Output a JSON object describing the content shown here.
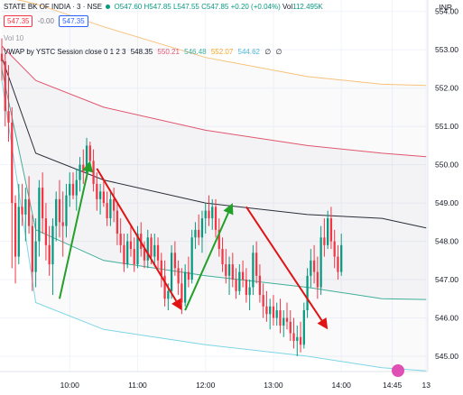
{
  "header": {
    "symbol": "STATE BK OF INDIA · 3 · NSE",
    "o": "O547.60",
    "h": "H547.85",
    "l": "L547.55",
    "c": "C547.85",
    "chg": "+0.20 (+0.04%)",
    "vol_label": "Vol",
    "vol_value": "112.495K",
    "sell_price": "547.35",
    "spread": "-0.00",
    "buy_price": "547.35",
    "vol_indicator": "Vol 10",
    "vwap_label": "VWAP by YSTC Session close 0 1 2 3",
    "vwap_values": [
      "548.35",
      "550.21",
      "546.48",
      "552.07",
      "544.62",
      "∅",
      "∅"
    ],
    "currency": "INR"
  },
  "colors": {
    "up": "#089981",
    "down": "#f23645",
    "vwap": "#2a2e39",
    "band1_up": "#e0566f",
    "band1_dn": "#3fae9a",
    "band2_up": "#f7c27a",
    "band2_dn": "#7dd6e5",
    "arrow_up": "#22a028",
    "arrow_down": "#e01414"
  },
  "chart_data": {
    "type": "candlestick",
    "ylim": [
      544.6,
      554.3
    ],
    "y_ticks": [
      545.0,
      546.0,
      547.0,
      548.0,
      549.0,
      550.0,
      551.0,
      552.0,
      553.0,
      554.0
    ],
    "x_ticks": [
      {
        "label": "10:00",
        "t": 20
      },
      {
        "label": "11:00",
        "t": 40
      },
      {
        "label": "12:00",
        "t": 60
      },
      {
        "label": "13:00",
        "t": 80
      },
      {
        "label": "14:00",
        "t": 100
      },
      {
        "label": "14:45",
        "t": 115
      },
      {
        "label": "13",
        "t": 125
      }
    ],
    "xlim": [
      0,
      126
    ],
    "candles": [
      [
        0,
        552.9,
        553.3,
        552.2,
        552.7
      ],
      [
        1,
        552.7,
        552.9,
        551.0,
        551.4
      ],
      [
        2,
        551.4,
        552.6,
        550.6,
        551.1
      ],
      [
        3,
        551.1,
        551.5,
        547.3,
        549.0
      ],
      [
        4,
        549.0,
        549.2,
        546.9,
        547.6
      ],
      [
        5,
        547.6,
        549.5,
        547.4,
        548.9
      ],
      [
        6,
        548.9,
        549.5,
        548.4,
        548.7
      ],
      [
        7,
        548.7,
        549.4,
        548.0,
        549.1
      ],
      [
        8,
        549.1,
        549.7,
        548.2,
        548.4
      ],
      [
        9,
        548.4,
        548.7,
        546.7,
        547.2
      ],
      [
        10,
        547.2,
        548.6,
        546.8,
        548.0
      ],
      [
        11,
        548.0,
        549.6,
        547.6,
        549.4
      ],
      [
        12,
        549.4,
        549.8,
        548.2,
        548.6
      ],
      [
        13,
        548.6,
        549.0,
        547.5,
        547.9
      ],
      [
        14,
        547.9,
        548.4,
        547.1,
        547.4
      ],
      [
        15,
        547.4,
        548.6,
        546.6,
        548.4
      ],
      [
        16,
        548.4,
        549.3,
        548.0,
        549.1
      ],
      [
        17,
        549.1,
        549.6,
        548.1,
        548.5
      ],
      [
        18,
        548.5,
        549.3,
        547.6,
        548.4
      ],
      [
        19,
        548.4,
        549.5,
        548.1,
        549.2
      ],
      [
        20,
        549.2,
        549.8,
        548.9,
        549.5
      ],
      [
        21,
        549.5,
        549.8,
        549.1,
        549.2
      ],
      [
        22,
        549.2,
        549.9,
        548.8,
        549.6
      ],
      [
        23,
        549.6,
        550.2,
        549.3,
        550.0
      ],
      [
        24,
        550.0,
        550.4,
        549.5,
        549.8
      ],
      [
        25,
        549.8,
        550.7,
        549.6,
        550.5
      ],
      [
        26,
        550.5,
        550.6,
        549.9,
        550.1
      ],
      [
        27,
        550.1,
        550.4,
        549.3,
        549.5
      ],
      [
        28,
        549.5,
        549.8,
        548.8,
        549.1
      ],
      [
        29,
        549.1,
        549.5,
        548.7,
        549.3
      ],
      [
        30,
        549.3,
        549.6,
        548.9,
        549.0
      ],
      [
        31,
        549.0,
        549.3,
        548.4,
        548.6
      ],
      [
        32,
        548.6,
        549.3,
        548.4,
        549.1
      ],
      [
        33,
        549.1,
        549.4,
        548.5,
        548.8
      ],
      [
        34,
        548.8,
        549.0,
        547.9,
        548.2
      ],
      [
        35,
        548.2,
        548.6,
        547.7,
        547.9
      ],
      [
        36,
        547.9,
        548.2,
        547.2,
        547.4
      ],
      [
        37,
        547.4,
        548.2,
        547.3,
        548.0
      ],
      [
        38,
        548.0,
        548.4,
        547.6,
        547.8
      ],
      [
        39,
        547.8,
        548.1,
        547.2,
        547.4
      ],
      [
        40,
        547.4,
        548.4,
        547.3,
        548.2
      ],
      [
        41,
        548.2,
        548.5,
        547.6,
        547.8
      ],
      [
        42,
        547.8,
        548.0,
        547.3,
        547.5
      ],
      [
        43,
        547.5,
        548.3,
        547.3,
        548.1
      ],
      [
        44,
        548.1,
        548.2,
        547.4,
        547.6
      ],
      [
        45,
        547.6,
        548.2,
        547.4,
        547.9
      ],
      [
        46,
        547.9,
        548.1,
        547.3,
        547.5
      ],
      [
        47,
        547.5,
        547.7,
        546.8,
        547.1
      ],
      [
        48,
        547.1,
        547.5,
        546.3,
        546.5
      ],
      [
        49,
        546.5,
        546.9,
        546.2,
        546.7
      ],
      [
        50,
        546.7,
        547.9,
        546.5,
        547.7
      ],
      [
        51,
        547.7,
        548.0,
        547.1,
        547.3
      ],
      [
        52,
        547.3,
        547.5,
        546.6,
        546.9
      ],
      [
        53,
        546.9,
        547.3,
        546.1,
        546.4
      ],
      [
        54,
        546.4,
        547.4,
        546.3,
        547.2
      ],
      [
        55,
        547.2,
        547.6,
        546.8,
        547.0
      ],
      [
        56,
        547.0,
        548.3,
        546.9,
        548.1
      ],
      [
        57,
        548.1,
        548.5,
        547.8,
        548.3
      ],
      [
        58,
        548.3,
        548.7,
        547.9,
        548.1
      ],
      [
        59,
        548.1,
        548.8,
        547.7,
        548.6
      ],
      [
        60,
        548.6,
        549.0,
        548.2,
        548.8
      ],
      [
        61,
        548.8,
        549.2,
        548.4,
        548.6
      ],
      [
        62,
        548.6,
        549.1,
        548.3,
        548.9
      ],
      [
        63,
        548.9,
        549.1,
        548.1,
        548.3
      ],
      [
        64,
        548.3,
        548.6,
        547.6,
        547.8
      ],
      [
        65,
        547.8,
        548.1,
        547.2,
        547.4
      ],
      [
        66,
        547.4,
        547.8,
        546.9,
        547.1
      ],
      [
        67,
        547.1,
        547.6,
        546.6,
        547.4
      ],
      [
        68,
        547.4,
        547.7,
        546.8,
        547.0
      ],
      [
        69,
        547.0,
        547.3,
        546.5,
        546.7
      ],
      [
        70,
        546.7,
        547.4,
        546.6,
        547.2
      ],
      [
        71,
        547.2,
        547.5,
        546.8,
        547.0
      ],
      [
        72,
        547.0,
        547.3,
        546.4,
        546.6
      ],
      [
        73,
        546.6,
        547.0,
        546.2,
        546.8
      ],
      [
        74,
        546.8,
        547.9,
        546.6,
        547.7
      ],
      [
        75,
        547.7,
        548.0,
        546.9,
        547.1
      ],
      [
        76,
        547.1,
        547.4,
        546.4,
        546.6
      ],
      [
        77,
        546.6,
        546.9,
        546.0,
        546.3
      ],
      [
        78,
        546.3,
        546.7,
        545.9,
        546.1
      ],
      [
        79,
        546.1,
        546.5,
        545.7,
        546.3
      ],
      [
        80,
        546.3,
        546.6,
        545.8,
        546.0
      ],
      [
        81,
        546.0,
        546.4,
        545.8,
        546.2
      ],
      [
        82,
        546.2,
        546.5,
        545.6,
        545.8
      ],
      [
        83,
        545.8,
        546.2,
        545.5,
        546.0
      ],
      [
        84,
        546.0,
        546.4,
        545.7,
        545.9
      ],
      [
        85,
        545.9,
        546.2,
        545.4,
        545.6
      ],
      [
        86,
        545.6,
        546.0,
        545.2,
        545.4
      ],
      [
        87,
        545.4,
        545.8,
        545.0,
        545.5
      ],
      [
        88,
        545.5,
        545.9,
        545.1,
        545.3
      ],
      [
        89,
        545.3,
        546.4,
        545.2,
        546.2
      ],
      [
        90,
        546.2,
        547.3,
        546.0,
        547.1
      ],
      [
        91,
        547.1,
        547.8,
        546.8,
        547.5
      ],
      [
        92,
        547.5,
        547.9,
        546.9,
        547.2
      ],
      [
        93,
        547.2,
        547.6,
        546.5,
        546.8
      ],
      [
        94,
        546.8,
        548.4,
        546.6,
        548.1
      ],
      [
        95,
        548.1,
        548.6,
        547.6,
        547.9
      ],
      [
        96,
        547.9,
        548.8,
        547.8,
        548.6
      ],
      [
        97,
        548.6,
        548.9,
        547.8,
        548.0
      ],
      [
        98,
        548.0,
        548.3,
        547.3,
        547.6
      ],
      [
        99,
        547.6,
        547.9,
        547.0,
        547.2
      ],
      [
        100,
        547.2,
        548.2,
        547.1,
        547.9
      ]
    ],
    "vwap": [
      [
        0,
        552.8
      ],
      [
        10,
        550.3
      ],
      [
        30,
        549.6
      ],
      [
        60,
        549.0
      ],
      [
        90,
        548.7
      ],
      [
        112,
        548.6
      ],
      [
        125,
        548.35
      ]
    ],
    "band1_upper": [
      [
        0,
        553.1
      ],
      [
        10,
        552.2
      ],
      [
        30,
        551.5
      ],
      [
        60,
        550.9
      ],
      [
        90,
        550.5
      ],
      [
        112,
        550.3
      ],
      [
        125,
        550.21
      ]
    ],
    "band1_lower": [
      [
        0,
        552.5
      ],
      [
        10,
        548.3
      ],
      [
        30,
        547.5
      ],
      [
        60,
        547.1
      ],
      [
        90,
        546.8
      ],
      [
        112,
        546.5
      ],
      [
        125,
        546.48
      ]
    ],
    "band2_upper": [
      [
        0,
        554.4
      ],
      [
        10,
        554.2
      ],
      [
        30,
        553.6
      ],
      [
        60,
        552.8
      ],
      [
        90,
        552.3
      ],
      [
        112,
        552.1
      ],
      [
        125,
        552.07
      ]
    ],
    "band2_lower": [
      [
        0,
        552.2
      ],
      [
        10,
        546.4
      ],
      [
        30,
        545.7
      ],
      [
        60,
        545.3
      ],
      [
        90,
        545.0
      ],
      [
        112,
        544.7
      ],
      [
        125,
        544.62
      ]
    ],
    "arrows": [
      {
        "dir": "up",
        "from": [
          17,
          546.5
        ],
        "to": [
          26,
          550.1
        ]
      },
      {
        "dir": "down",
        "from": [
          28,
          549.9
        ],
        "to": [
          53,
          546.2
        ]
      },
      {
        "dir": "up",
        "from": [
          54,
          546.2
        ],
        "to": [
          68,
          549.0
        ]
      },
      {
        "dir": "down",
        "from": [
          72,
          548.9
        ],
        "to": [
          96,
          545.7
        ]
      }
    ]
  }
}
